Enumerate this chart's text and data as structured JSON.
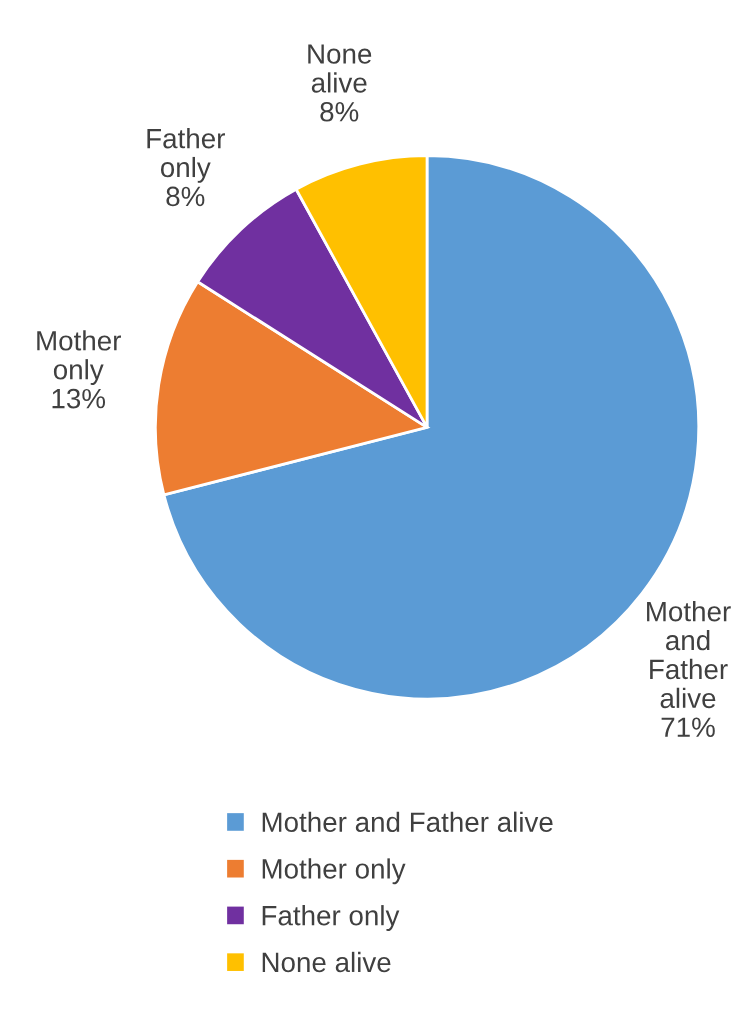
{
  "chart_data": {
    "type": "pie",
    "categories": [
      "Mother and Father alive",
      "Mother only",
      "Father only",
      "None alive"
    ],
    "values": [
      71,
      13,
      8,
      8
    ],
    "value_labels": [
      "71%",
      "13%",
      "8%",
      "8%"
    ],
    "colors": [
      "#5b9bd5",
      "#ed7d31",
      "#7030a0",
      "#ffc000"
    ],
    "legend": "bottom"
  }
}
